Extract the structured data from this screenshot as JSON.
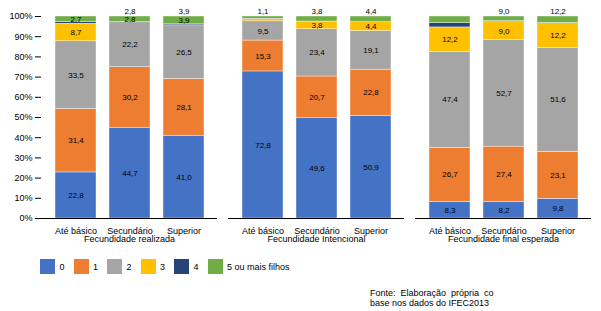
{
  "chart_data": {
    "type": "bar",
    "stacked": true,
    "groups": [
      {
        "name": "Fecundidade realizada",
        "categories": [
          "Até básico",
          "Secundário",
          "Superior"
        ]
      },
      {
        "name": "Fecundidade Intencional",
        "categories": [
          "Até básico",
          "Secundário",
          "Superior"
        ]
      },
      {
        "name": "Fecundidade final esperada",
        "categories": [
          "Até básico",
          "Secundário",
          "Superior"
        ]
      }
    ],
    "series": [
      {
        "name": "0",
        "color": "#4472C4",
        "values": [
          22.8,
          44.7,
          41.0,
          72.8,
          49.6,
          50.9,
          8.3,
          8.2,
          9.8
        ],
        "value_labels": [
          "22,8",
          "44,7",
          "41,0",
          "72,8",
          "49,6",
          "50,9",
          "8,3",
          "8,2",
          "9,8"
        ]
      },
      {
        "name": "1",
        "color": "#ED7D31",
        "values": [
          31.4,
          30.2,
          28.1,
          15.3,
          20.7,
          22.8,
          26.7,
          27.4,
          23.1
        ],
        "value_labels": [
          "31,4",
          "30,2",
          "28,1",
          "15,3",
          "20,7",
          "22,8",
          "26,7",
          "27,4",
          "23,1"
        ]
      },
      {
        "name": "2",
        "color": "#A5A5A5",
        "values": [
          33.5,
          22.2,
          26.5,
          9.5,
          23.4,
          19.1,
          47.4,
          52.7,
          51.6
        ],
        "value_labels": [
          "33,5",
          "22,2",
          "26,5",
          "9,5",
          "23,4",
          "19,1",
          "47,4",
          "52,7",
          "51,6"
        ]
      },
      {
        "name": "3",
        "color": "#FFC000",
        "values": [
          8.7,
          0.0,
          0.0,
          1.1,
          3.8,
          4.4,
          12.2,
          9.0,
          12.2
        ],
        "value_labels": [
          "8,7",
          null,
          null,
          null,
          "3,8",
          "4,4",
          "12,2",
          "9,0",
          "12,2"
        ]
      },
      {
        "name": "4",
        "color": "#264478",
        "values": [
          0.9,
          0.1,
          0.5,
          0.2,
          0.0,
          0.0,
          2.1,
          0.5,
          0.1
        ],
        "value_labels": [
          null,
          null,
          null,
          null,
          null,
          null,
          null,
          null,
          null
        ]
      },
      {
        "name": "5 ou mais filhos",
        "color": "#70AD47",
        "values": [
          2.7,
          2.8,
          3.9,
          1.1,
          2.5,
          2.8,
          3.3,
          2.2,
          3.2
        ],
        "value_labels": [
          "2,7",
          "2,8",
          "3,9",
          null,
          null,
          null,
          null,
          null,
          null
        ]
      }
    ],
    "annotations": [
      null,
      "2,8",
      "3,9",
      "1,1",
      "3,8",
      "4,4",
      null,
      "9,0",
      "12,2"
    ],
    "ylim": [
      0,
      100
    ],
    "yticks": [
      {
        "value": 0,
        "label": "0%"
      },
      {
        "value": 10,
        "label": "10%"
      },
      {
        "value": 20,
        "label": "20%"
      },
      {
        "value": 30,
        "label": "30%"
      },
      {
        "value": 40,
        "label": "40%"
      },
      {
        "value": 50,
        "label": "50%"
      },
      {
        "value": 60,
        "label": "60%"
      },
      {
        "value": 70,
        "label": "70%"
      },
      {
        "value": 80,
        "label": "80%"
      },
      {
        "value": 90,
        "label": "90%"
      },
      {
        "value": 100,
        "label": "100%"
      }
    ],
    "grid": false,
    "data_labels": true,
    "legend": "bottom",
    "source": "Fonte:  Elaboração  própria  co\nbase nos dados do IFEC2013"
  }
}
